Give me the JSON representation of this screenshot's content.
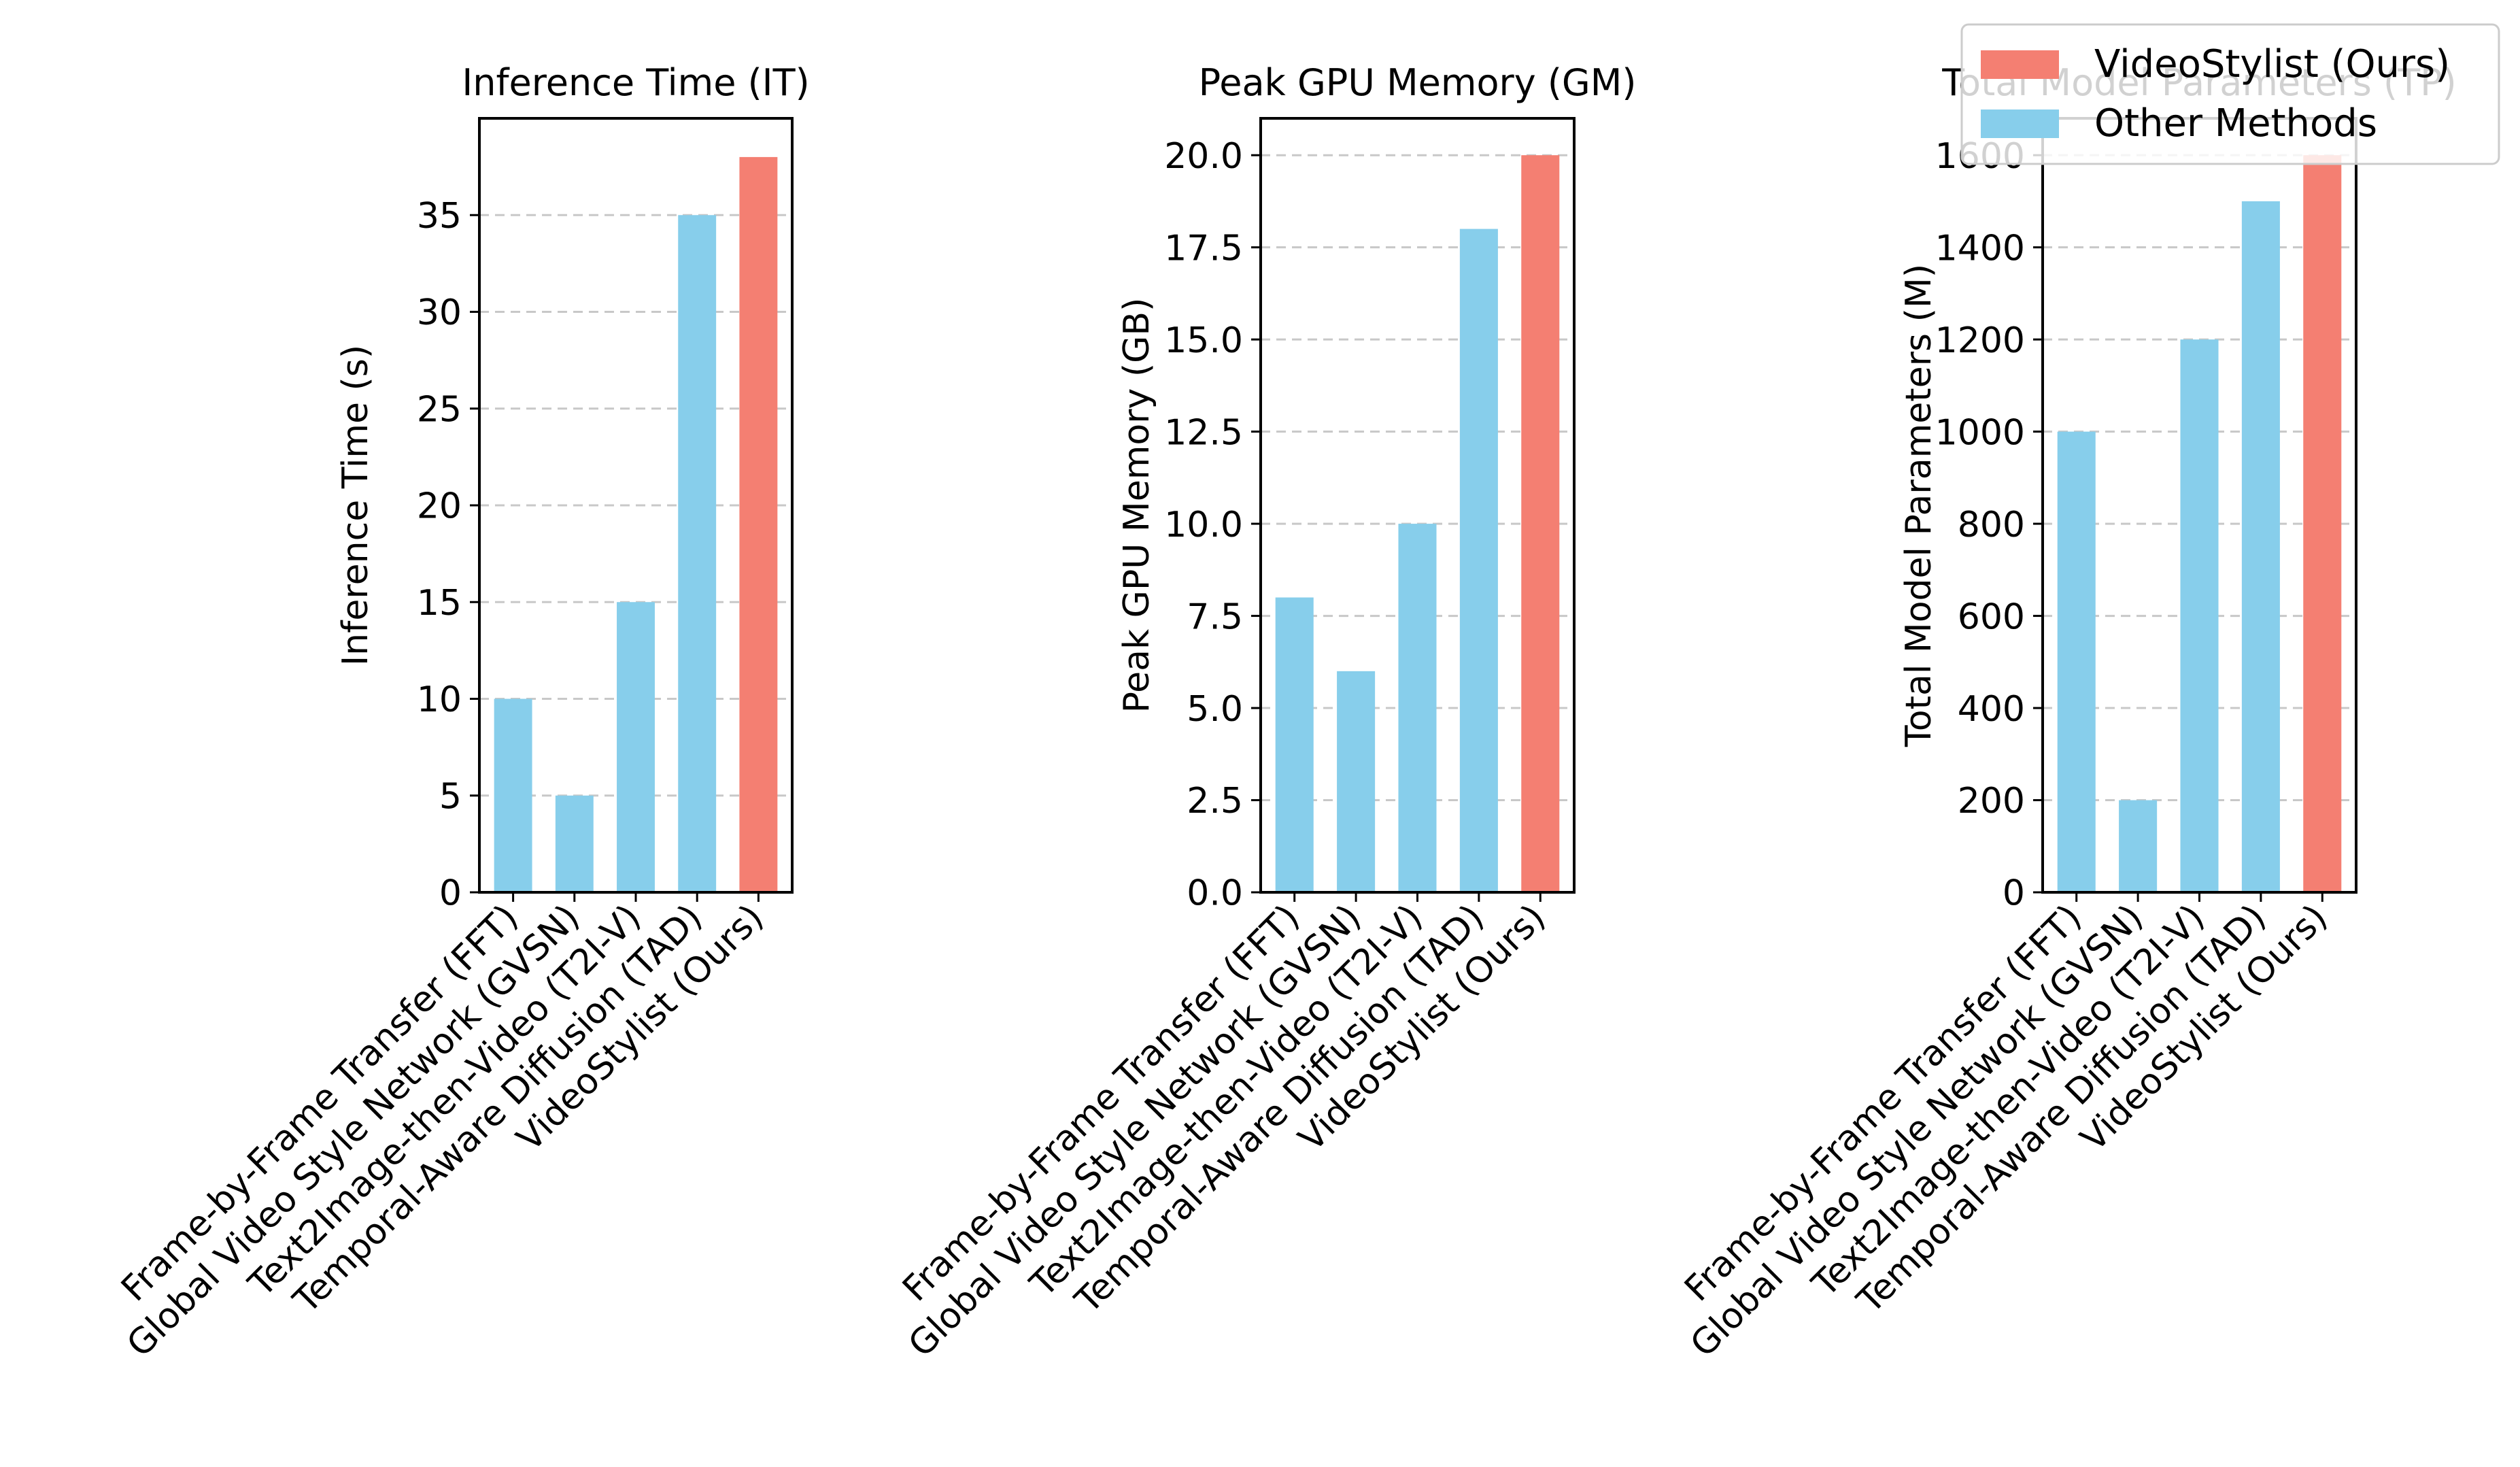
{
  "legend": {
    "placement": "top-right",
    "entries": [
      {
        "label": "VideoStylist (Ours)",
        "color": "#f47f72"
      },
      {
        "label": "Other Methods",
        "color": "#87ceeb"
      }
    ]
  },
  "colors": {
    "ours": "#f47f72",
    "other": "#87ceeb",
    "grid": "#c8c8c8"
  },
  "chart_data": [
    {
      "type": "bar",
      "title": "Inference Time (IT)",
      "xlabel": "",
      "ylabel": "Inference Time (s)",
      "categories": [
        "Frame-by-Frame Transfer (FFT)",
        "Global Video Style Network (GVSN)",
        "Text2Image-then-Video (T2I-V)",
        "Temporal-Aware Diffusion (TAD)",
        "VideoStylist (Ours)"
      ],
      "values": [
        10,
        5,
        15,
        35,
        38
      ],
      "highlight_index": 4,
      "ylim": [
        0,
        40
      ],
      "yticks": [
        0,
        5,
        10,
        15,
        20,
        25,
        30,
        35
      ],
      "ytick_labels": [
        "0",
        "5",
        "10",
        "15",
        "20",
        "25",
        "30",
        "35"
      ],
      "grid": "y-dashed"
    },
    {
      "type": "bar",
      "title": "Peak GPU Memory (GM)",
      "xlabel": "",
      "ylabel": "Peak GPU Memory (GB)",
      "categories": [
        "Frame-by-Frame Transfer (FFT)",
        "Global Video Style Network (GVSN)",
        "Text2Image-then-Video (T2I-V)",
        "Temporal-Aware Diffusion (TAD)",
        "VideoStylist (Ours)"
      ],
      "values": [
        8,
        6,
        10,
        18,
        20
      ],
      "highlight_index": 4,
      "ylim": [
        0,
        21
      ],
      "yticks": [
        0,
        2.5,
        5,
        7.5,
        10,
        12.5,
        15,
        17.5,
        20
      ],
      "ytick_labels": [
        "0.0",
        "2.5",
        "5.0",
        "7.5",
        "10.0",
        "12.5",
        "15.0",
        "17.5",
        "20.0"
      ],
      "grid": "y-dashed"
    },
    {
      "type": "bar",
      "title": "Total Model Parameters (TP)",
      "xlabel": "",
      "ylabel": "Total Model Parameters (M)",
      "categories": [
        "Frame-by-Frame Transfer (FFT)",
        "Global Video Style Network (GVSN)",
        "Text2Image-then-Video (T2I-V)",
        "Temporal-Aware Diffusion (TAD)",
        "VideoStylist (Ours)"
      ],
      "values": [
        1000,
        200,
        1200,
        1500,
        1600
      ],
      "highlight_index": 4,
      "ylim": [
        0,
        1680
      ],
      "yticks": [
        0,
        200,
        400,
        600,
        800,
        1000,
        1200,
        1400,
        1600
      ],
      "ytick_labels": [
        "0",
        "200",
        "400",
        "600",
        "800",
        "1000",
        "1200",
        "1400",
        "1600"
      ],
      "grid": "y-dashed"
    }
  ]
}
